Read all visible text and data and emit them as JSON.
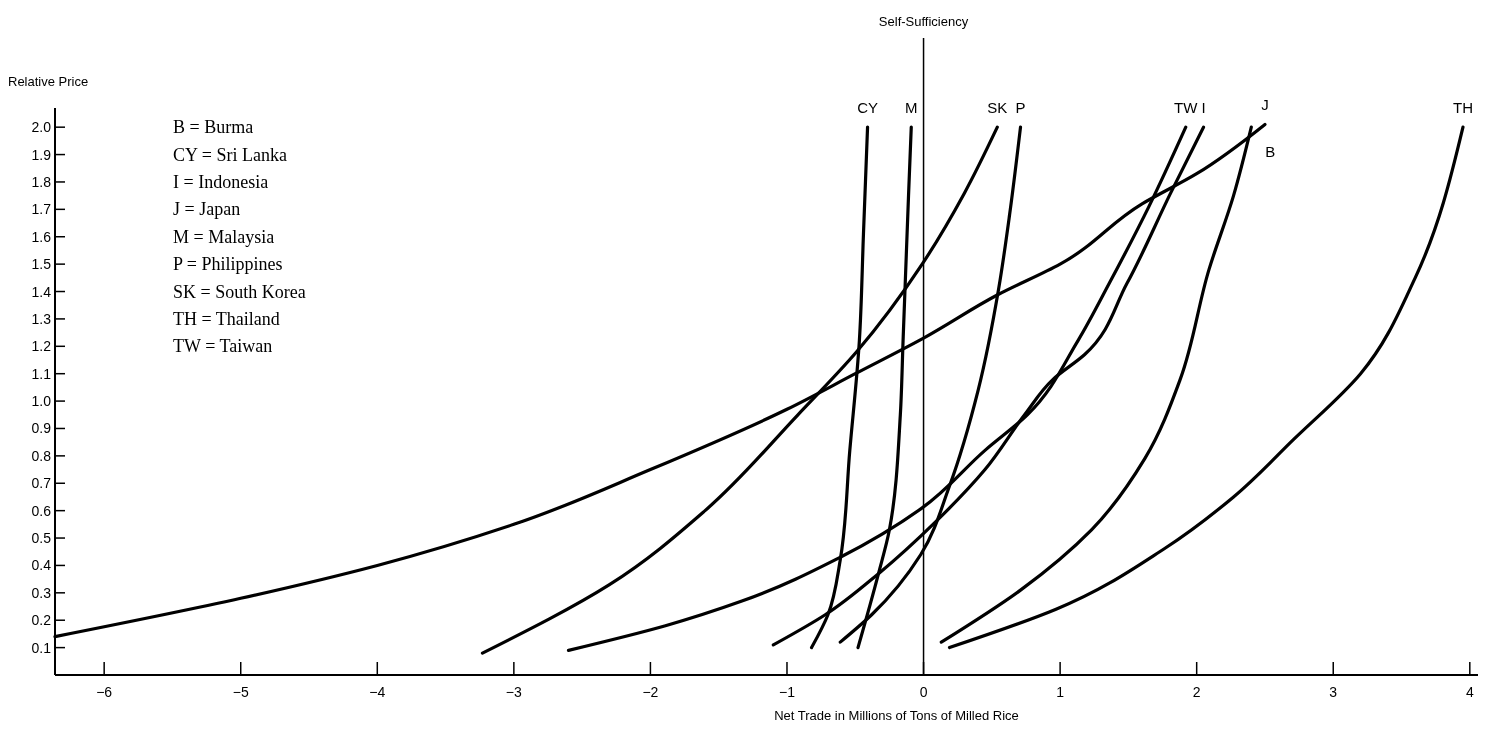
{
  "chart_data": {
    "type": "line",
    "xlabel": "Net Trade in Millions of Tons of Milled Rice",
    "ylabel": "Relative Price",
    "xlim": [
      -6.36,
      4.06
    ],
    "ylim": [
      0,
      2.07
    ],
    "xticks": [
      {
        "value": -6,
        "label": "−6"
      },
      {
        "value": -5,
        "label": "−5"
      },
      {
        "value": -4,
        "label": "−4"
      },
      {
        "value": -3,
        "label": "−3"
      },
      {
        "value": -2,
        "label": "−2"
      },
      {
        "value": -1,
        "label": "−1"
      },
      0,
      1,
      2,
      3,
      4
    ],
    "yticks": [
      0.1,
      0.2,
      0.3,
      0.4,
      0.5,
      0.6,
      0.7,
      0.8,
      0.9,
      {
        "value": 1,
        "label": "1.0"
      },
      1.1,
      1.2,
      1.3,
      1.4,
      1.5,
      1.6,
      1.7,
      1.8,
      1.9,
      {
        "value": 2,
        "label": "2.0"
      }
    ],
    "grid": false,
    "marker": "none",
    "line_style": "solid",
    "ref_lines": [
      {
        "axis": "x",
        "value": 0,
        "label": "Self-Sufficiency",
        "color": "#000000"
      }
    ],
    "annotations": [
      "B = Burma",
      "CY = Sri Lanka",
      "I = Indonesia",
      "J = Japan",
      "M = Malaysia",
      "P = Philippines",
      "SK = South Korea",
      "TH = Thailand",
      "TW = Taiwan"
    ],
    "series": [
      {
        "name": "CY",
        "color": "#000000",
        "x": [
          -0.82,
          -0.7,
          -0.61,
          -0.54,
          -0.47,
          -0.44,
          -0.41
        ],
        "values": [
          0.1,
          0.22,
          0.42,
          0.82,
          1.22,
          1.61,
          2.0
        ]
      },
      {
        "name": "M",
        "color": "#000000",
        "x": [
          -0.48,
          -0.33,
          -0.25,
          -0.17,
          -0.15,
          -0.11,
          -0.09
        ],
        "values": [
          0.1,
          0.37,
          0.53,
          0.95,
          1.22,
          1.75,
          2.0
        ]
      },
      {
        "name": "SK",
        "color": "#000000",
        "x": [
          -3.23,
          -2.3,
          -1.6,
          -0.92,
          -0.49,
          -0.01,
          0.3,
          0.54
        ],
        "values": [
          0.08,
          0.33,
          0.6,
          0.95,
          1.18,
          1.5,
          1.76,
          2.0
        ]
      },
      {
        "name": "P",
        "color": "#000000",
        "x": [
          -0.61,
          -0.38,
          -0.02,
          0.19,
          0.4,
          0.55,
          0.63,
          0.71
        ],
        "values": [
          0.12,
          0.22,
          0.44,
          0.69,
          1.04,
          1.41,
          1.68,
          2.0
        ]
      },
      {
        "name": "TW",
        "color": "#000000",
        "x": [
          -2.6,
          -1.89,
          -1.33,
          -0.61,
          -0.01,
          0.45,
          0.76,
          1.13,
          1.36,
          1.65,
          1.92
        ],
        "values": [
          0.09,
          0.18,
          0.27,
          0.43,
          0.61,
          0.82,
          0.95,
          1.22,
          1.43,
          1.71,
          2.0
        ]
      },
      {
        "name": "I",
        "color": "#000000",
        "x": [
          -1.1,
          -0.72,
          -0.33,
          0.09,
          0.45,
          0.74,
          0.95,
          1.18,
          1.49,
          1.81,
          2.05
        ],
        "values": [
          0.11,
          0.22,
          0.37,
          0.56,
          0.75,
          0.95,
          1.08,
          1.17,
          1.43,
          1.76,
          2.0
        ]
      },
      {
        "name": "J",
        "color": "#000000",
        "x": [
          -6.36,
          -5,
          -4,
          -3,
          -2,
          -1,
          -0.5,
          0,
          0.55,
          1,
          1.6,
          2,
          2.5
        ],
        "values": [
          0.14,
          0.28,
          0.4,
          0.55,
          0.75,
          0.97,
          1.1,
          1.23,
          1.39,
          1.5,
          1.72,
          1.83,
          2.01
        ]
      },
      {
        "name": "B",
        "color": "#000000",
        "x": [
          0.13,
          0.71,
          1.23,
          1.62,
          1.88,
          2.09,
          2.27,
          2.4
        ],
        "values": [
          0.12,
          0.31,
          0.53,
          0.79,
          1.08,
          1.48,
          1.75,
          2.0
        ]
      },
      {
        "name": "TH",
        "color": "#000000",
        "x": [
          0.19,
          0.97,
          1.76,
          2.27,
          2.71,
          3.2,
          3.6,
          3.95
        ],
        "values": [
          0.1,
          0.24,
          0.46,
          0.65,
          0.86,
          1.1,
          1.45,
          2.0
        ]
      }
    ]
  }
}
